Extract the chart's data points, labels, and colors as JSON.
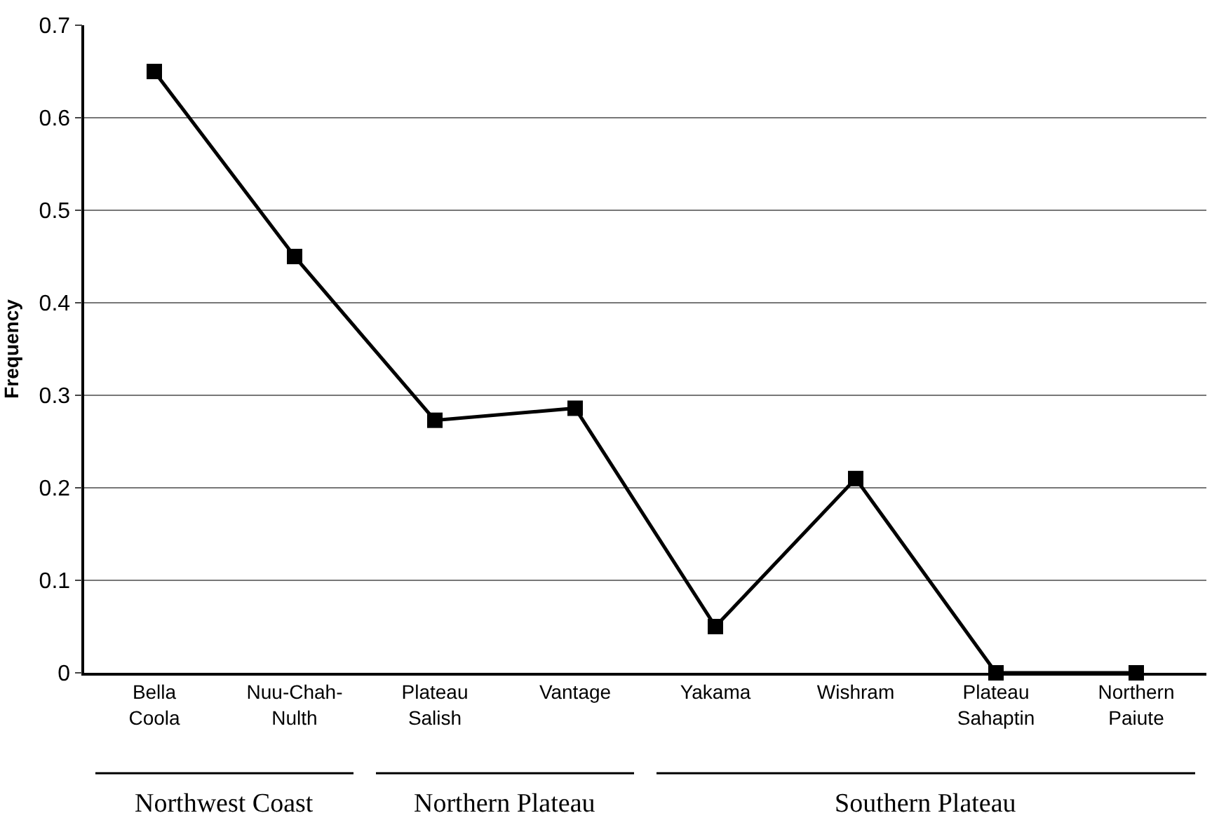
{
  "chart_data": {
    "type": "line",
    "ylabel": "Frequency",
    "categories": [
      "Bella Coola",
      "Nuu-Chah-Nulth",
      "Plateau Salish",
      "Vantage",
      "Yakama",
      "Wishram",
      "Plateau Sahaptin",
      "Northern Paiute"
    ],
    "series": [
      {
        "color": "#000000",
        "values": [
          0.65,
          0.45,
          0.273,
          0.286,
          0.05,
          0.21,
          0,
          0
        ]
      }
    ],
    "ylim": [
      0,
      0.7
    ],
    "yticks": [
      0,
      0.1,
      0.2,
      0.3,
      0.4,
      0.5,
      0.6,
      0.7
    ],
    "grid": "y",
    "legend": false,
    "marker": "square",
    "line_style": "solid",
    "annotations": [
      "Northwest Coast",
      "Northern Plateau",
      "Southern Plateau"
    ]
  }
}
